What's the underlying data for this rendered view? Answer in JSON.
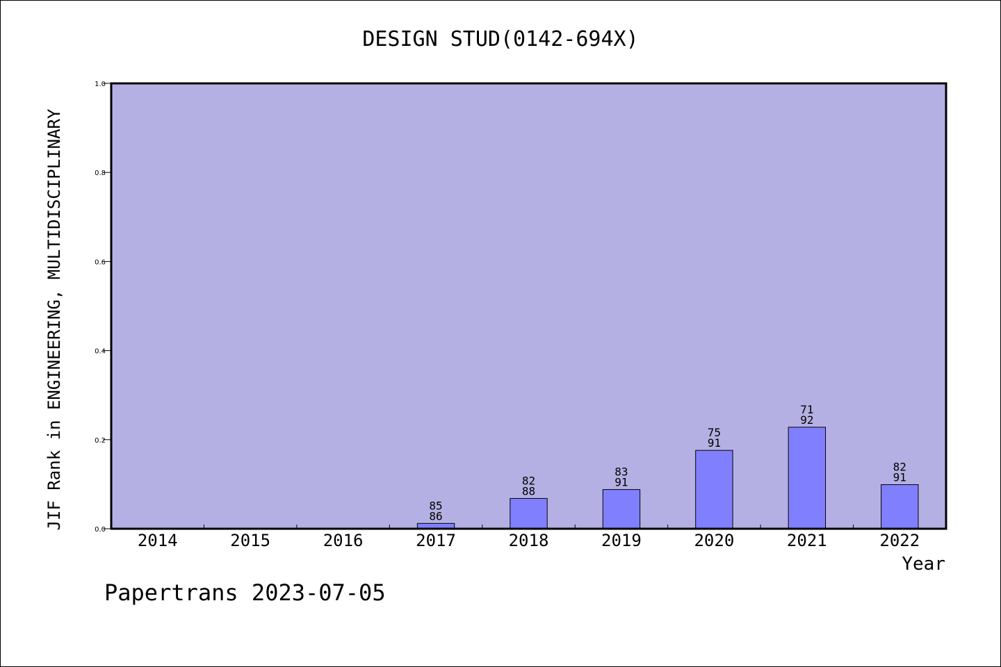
{
  "chart_data": {
    "type": "bar",
    "title": "DESIGN STUD(0142-694X)",
    "xlabel": "Year",
    "ylabel": "JIF Rank in ENGINEERING, MULTIDISCIPLINARY",
    "categories": [
      "2014",
      "2015",
      "2016",
      "2017",
      "2018",
      "2019",
      "2020",
      "2021",
      "2022"
    ],
    "values": [
      0,
      0,
      0,
      0.012,
      0.068,
      0.088,
      0.176,
      0.228,
      0.099
    ],
    "bar_labels": [
      [
        "",
        ""
      ],
      [
        "",
        ""
      ],
      [
        "",
        ""
      ],
      [
        "85",
        "86"
      ],
      [
        "82",
        "88"
      ],
      [
        "83",
        "91"
      ],
      [
        "75",
        "91"
      ],
      [
        "71",
        "92"
      ],
      [
        "82",
        "91"
      ]
    ],
    "ylim": [
      0,
      1.0
    ],
    "yticks": [
      "0.0",
      "0.2",
      "0.4",
      "0.6",
      "0.8",
      "1.0"
    ],
    "grid": false,
    "colors": {
      "plot_background": "#b5b0e3",
      "bar": "#8080ff",
      "bar_edge": "#000000"
    }
  },
  "footer": "Papertrans 2023-07-05"
}
